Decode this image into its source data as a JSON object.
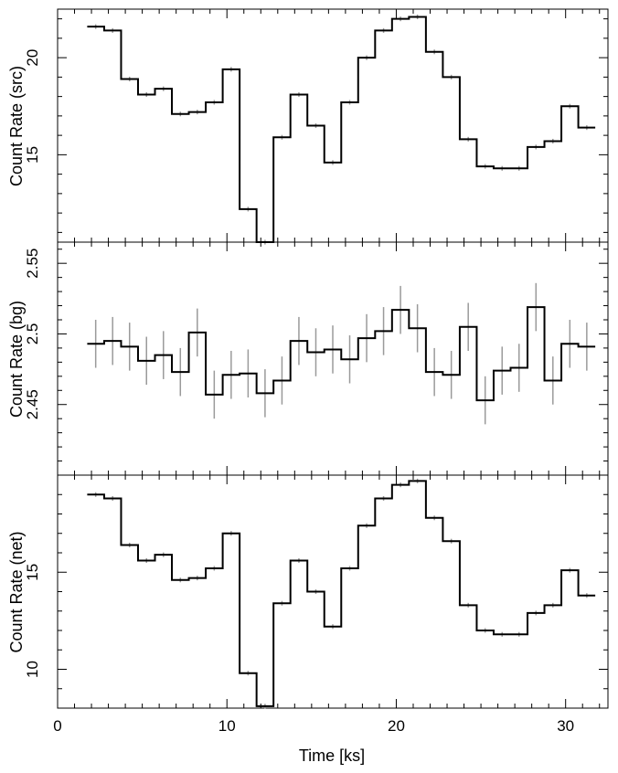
{
  "chart_data": [
    {
      "type": "line",
      "step": true,
      "ylabel": "Count Rate (src)",
      "ylim": [
        10.5,
        22.5
      ],
      "yticks": [
        15,
        20
      ],
      "xlim": [
        0,
        32.5
      ],
      "x": [
        2.25,
        3.25,
        4.25,
        5.25,
        6.25,
        7.25,
        8.25,
        9.25,
        10.25,
        11.25,
        12.25,
        13.25,
        14.25,
        15.25,
        16.25,
        17.25,
        18.25,
        19.25,
        20.25,
        21.25,
        22.25,
        23.25,
        24.25,
        25.25,
        26.25,
        27.25,
        28.25,
        29.25,
        30.25,
        31.25
      ],
      "values": [
        21.6,
        21.4,
        18.9,
        18.1,
        18.4,
        17.1,
        17.2,
        17.7,
        19.4,
        12.2,
        10.5,
        15.9,
        18.1,
        16.5,
        14.6,
        17.7,
        20.0,
        21.4,
        22.0,
        22.1,
        20.3,
        19.0,
        15.8,
        14.4,
        14.3,
        14.3,
        15.4,
        15.7,
        17.5,
        16.4
      ],
      "errors": [
        0.12,
        0.12,
        0.12,
        0.12,
        0.12,
        0.12,
        0.12,
        0.12,
        0.12,
        0.12,
        0.12,
        0.12,
        0.12,
        0.12,
        0.12,
        0.12,
        0.12,
        0.12,
        0.12,
        0.12,
        0.12,
        0.12,
        0.12,
        0.12,
        0.12,
        0.12,
        0.12,
        0.12,
        0.12,
        0.12
      ]
    },
    {
      "type": "line",
      "step": true,
      "ylabel": "Count Rate (bg)",
      "ylim": [
        2.4,
        2.565
      ],
      "yticks": [
        2.45,
        2.5,
        2.55
      ],
      "xlim": [
        0,
        32.5
      ],
      "x": [
        2.25,
        3.25,
        4.25,
        5.25,
        6.25,
        7.25,
        8.25,
        9.25,
        10.25,
        11.25,
        12.25,
        13.25,
        14.25,
        15.25,
        16.25,
        17.25,
        18.25,
        19.25,
        20.25,
        21.25,
        22.25,
        23.25,
        24.25,
        25.25,
        26.25,
        27.25,
        28.25,
        29.25,
        30.25,
        31.25
      ],
      "values": [
        2.493,
        2.495,
        2.491,
        2.481,
        2.485,
        2.473,
        2.501,
        2.457,
        2.471,
        2.472,
        2.458,
        2.467,
        2.495,
        2.487,
        2.489,
        2.482,
        2.497,
        2.502,
        2.517,
        2.504,
        2.473,
        2.471,
        2.505,
        2.453,
        2.474,
        2.476,
        2.519,
        2.467,
        2.493,
        2.491
      ],
      "errors": [
        0.017,
        0.017,
        0.017,
        0.017,
        0.017,
        0.017,
        0.017,
        0.017,
        0.017,
        0.017,
        0.017,
        0.017,
        0.017,
        0.017,
        0.017,
        0.017,
        0.017,
        0.017,
        0.017,
        0.017,
        0.017,
        0.017,
        0.017,
        0.017,
        0.017,
        0.017,
        0.017,
        0.017,
        0.017,
        0.017
      ]
    },
    {
      "type": "line",
      "step": true,
      "ylabel": "Count Rate (net)",
      "xlabel": "Time [ks]",
      "ylim": [
        8.0,
        20.0
      ],
      "yticks": [
        10,
        15
      ],
      "xlim": [
        0,
        32.5
      ],
      "xticks": [
        0,
        10,
        20,
        30
      ],
      "x": [
        2.25,
        3.25,
        4.25,
        5.25,
        6.25,
        7.25,
        8.25,
        9.25,
        10.25,
        11.25,
        12.25,
        13.25,
        14.25,
        15.25,
        16.25,
        17.25,
        18.25,
        19.25,
        20.25,
        21.25,
        22.25,
        23.25,
        24.25,
        25.25,
        26.25,
        27.25,
        28.25,
        29.25,
        30.25,
        31.25
      ],
      "values": [
        19.0,
        18.8,
        16.4,
        15.6,
        15.9,
        14.6,
        14.7,
        15.2,
        17.0,
        9.8,
        8.1,
        13.4,
        15.6,
        14.0,
        12.2,
        15.2,
        17.4,
        18.8,
        19.5,
        19.7,
        17.8,
        16.6,
        13.3,
        12.0,
        11.8,
        11.8,
        12.9,
        13.3,
        15.1,
        13.8
      ],
      "errors": [
        0.12,
        0.12,
        0.12,
        0.12,
        0.12,
        0.12,
        0.12,
        0.12,
        0.12,
        0.12,
        0.12,
        0.12,
        0.12,
        0.12,
        0.12,
        0.12,
        0.12,
        0.12,
        0.12,
        0.12,
        0.12,
        0.12,
        0.12,
        0.12,
        0.12,
        0.12,
        0.12,
        0.12,
        0.12,
        0.12
      ]
    }
  ],
  "colors": {
    "line": "#000000",
    "errorbar": "#9a9a9a",
    "axes": "#000000"
  }
}
